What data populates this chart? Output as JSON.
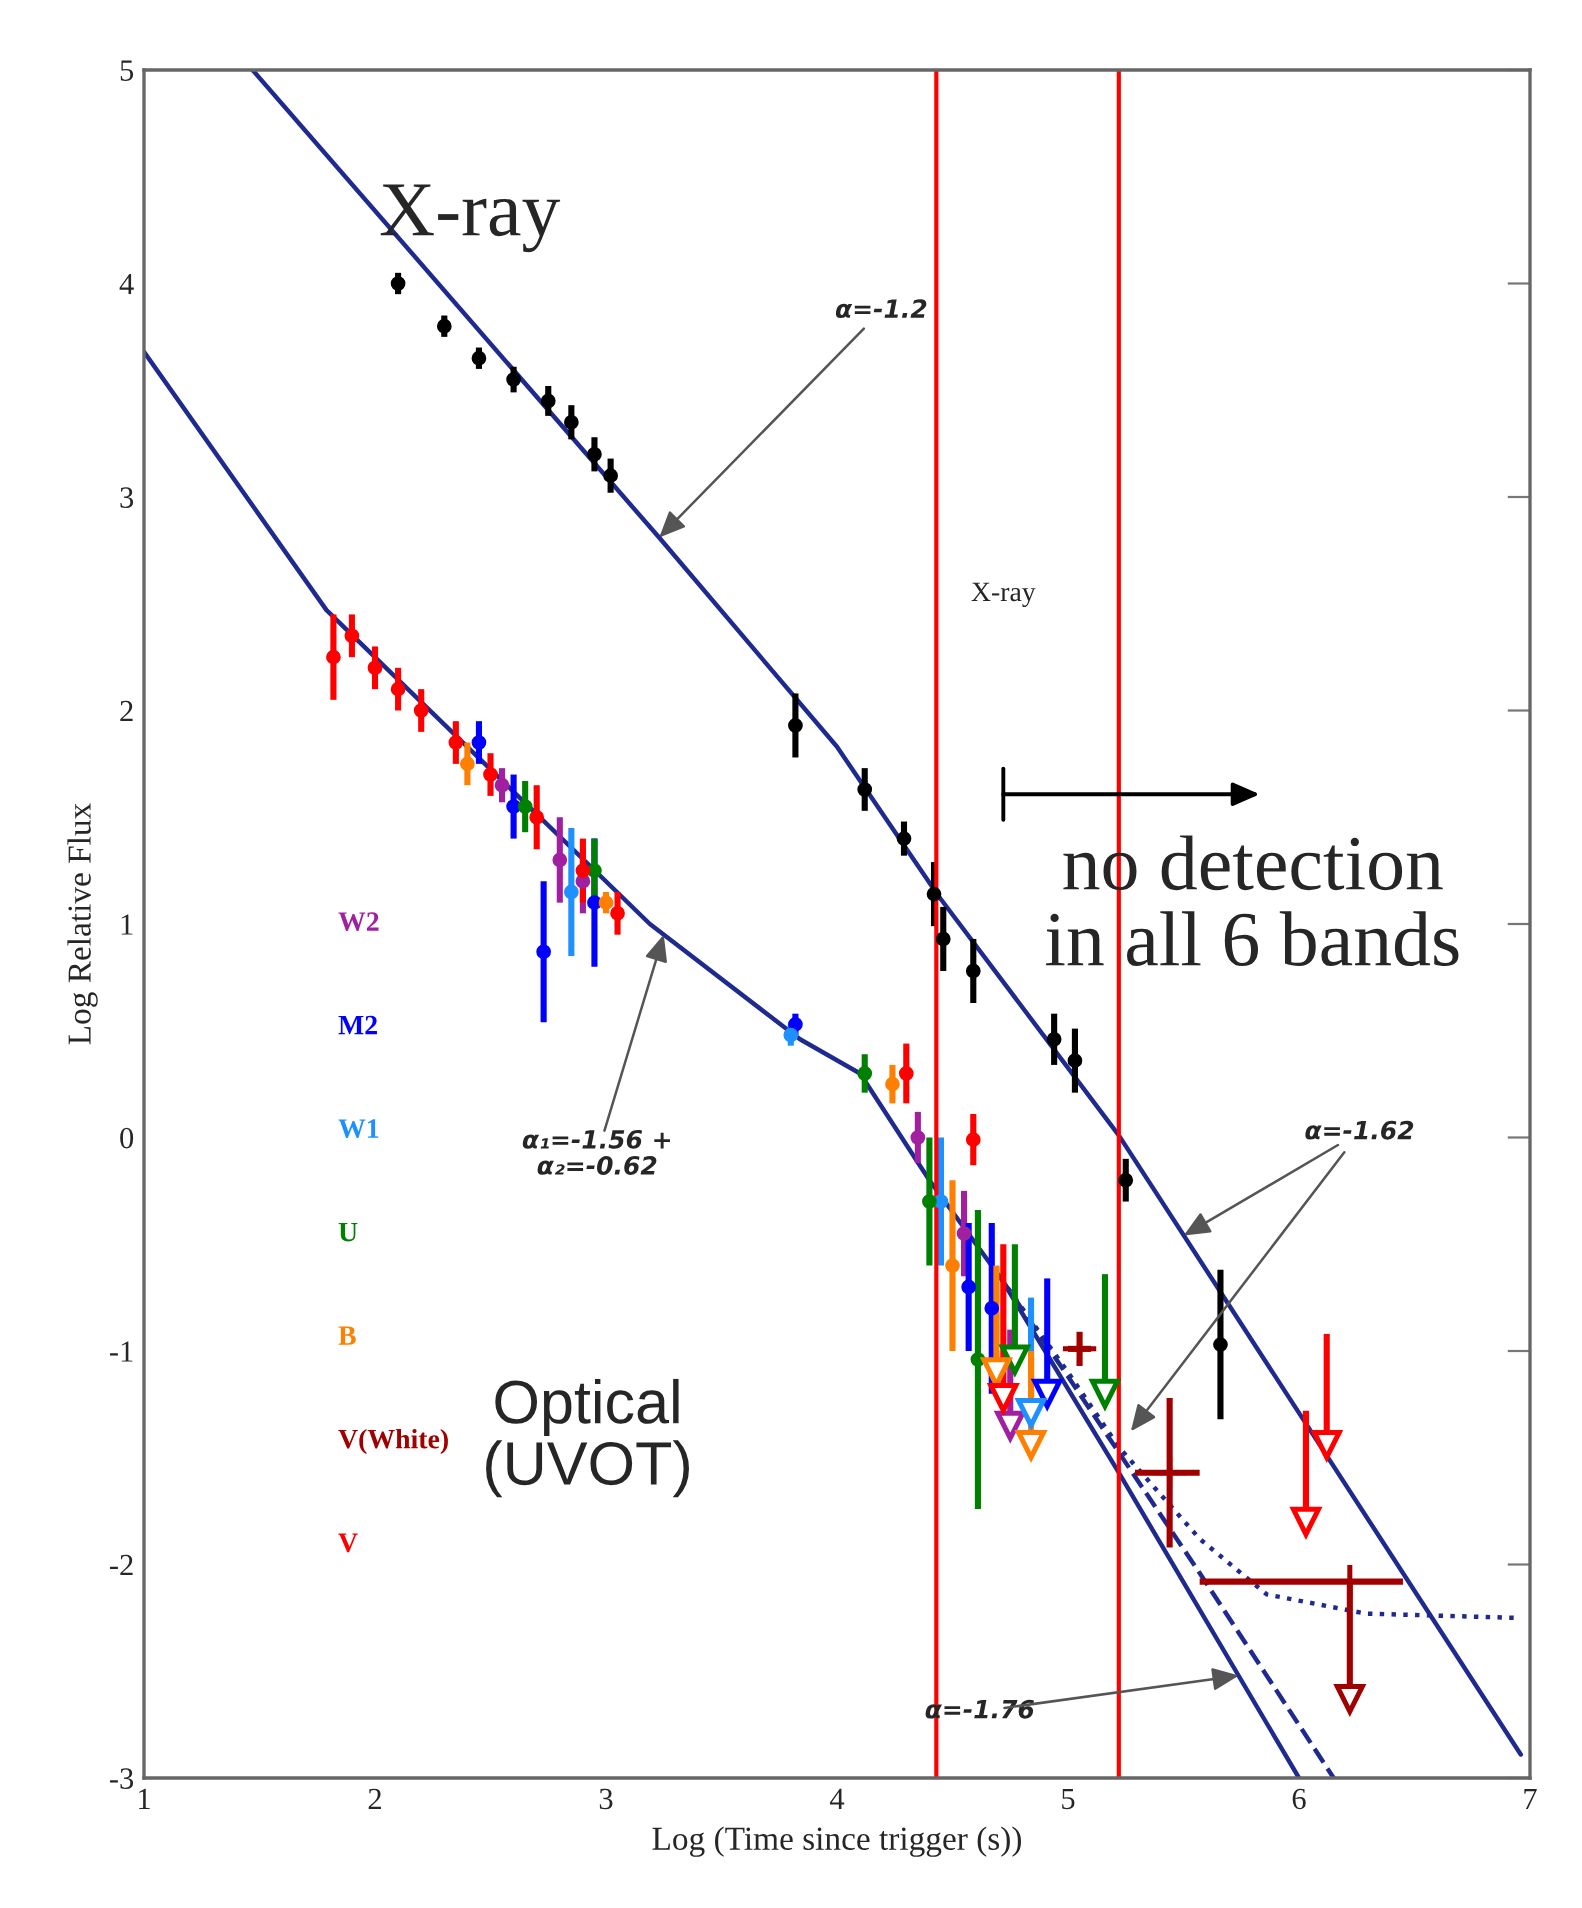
{
  "chart_data": {
    "type": "scatter",
    "xlabel": "Log (Time since trigger (s))",
    "ylabel": "Log Relative Flux",
    "xlim": [
      1,
      7
    ],
    "ylim": [
      -3,
      5
    ],
    "xticks": [
      1,
      2,
      3,
      4,
      5,
      6,
      7
    ],
    "yticks": [
      -3,
      -2,
      -1,
      0,
      1,
      2,
      3,
      4,
      5
    ],
    "grid": false,
    "ref_lines": [
      {
        "axis": "x",
        "value": 4.43,
        "color": "#ff0000"
      },
      {
        "axis": "x",
        "value": 5.22,
        "color": "#ff0000"
      }
    ],
    "series": [
      {
        "type": "line",
        "color": "#1f2a8f",
        "line_style": "solid",
        "x": [
          1.47,
          3.23,
          4.0,
          4.44,
          5.22,
          6.96
        ],
        "values": [
          5.0,
          2.81,
          1.83,
          1.13,
          0.01,
          -2.89
        ]
      },
      {
        "type": "line",
        "color": "#1f2a8f",
        "line_style": "solid",
        "x": [
          1.0,
          1.79,
          3.19,
          3.84,
          4.1,
          4.4,
          4.71,
          5.22,
          6.0
        ],
        "values": [
          3.68,
          2.47,
          1.0,
          0.46,
          0.3,
          -0.2,
          -0.66,
          -1.57,
          -3.0
        ]
      },
      {
        "type": "line",
        "color": "#1f2a8f",
        "line_style": "dashed",
        "x": [
          4.71,
          5.0,
          5.57,
          6.15
        ],
        "values": [
          -0.66,
          -1.12,
          -2.04,
          -3.0
        ]
      },
      {
        "type": "line",
        "color": "#1f2a8f",
        "line_style": "dotted",
        "x": [
          4.71,
          5.0,
          5.22,
          5.57,
          5.86,
          6.29,
          6.94
        ],
        "values": [
          -0.66,
          -1.1,
          -1.45,
          -1.88,
          -2.14,
          -2.23,
          -2.25
        ]
      },
      {
        "marker": "circle",
        "color": "#000000",
        "x": [
          2.1,
          2.3,
          2.45,
          2.6,
          2.75,
          2.85,
          2.95,
          3.02,
          3.82,
          4.12,
          4.29,
          4.42,
          4.46,
          4.59,
          4.94,
          5.03,
          5.25,
          5.66
        ],
        "values": [
          4.0,
          3.8,
          3.65,
          3.55,
          3.45,
          3.35,
          3.2,
          3.1,
          1.93,
          1.63,
          1.4,
          1.14,
          0.93,
          0.78,
          0.46,
          0.36,
          -0.2,
          -0.97
        ],
        "errors": [
          0.05,
          0.05,
          0.05,
          0.06,
          0.07,
          0.08,
          0.08,
          0.08,
          0.15,
          0.1,
          0.08,
          0.15,
          0.15,
          0.15,
          0.12,
          0.15,
          0.1,
          0.35
        ]
      },
      {
        "marker": "circle",
        "name": "W2",
        "color": "#a020a0",
        "x": [
          2.55,
          2.8,
          2.9,
          4.35,
          4.55
        ],
        "values": [
          1.65,
          1.3,
          1.2,
          0.0,
          -0.45
        ],
        "errors": [
          0.08,
          0.2,
          0.15,
          0.12,
          0.2
        ]
      },
      {
        "marker": "circle",
        "name": "M2",
        "color": "#0000ff",
        "x": [
          2.45,
          2.6,
          2.73,
          2.95,
          3.82,
          4.57,
          4.67
        ],
        "values": [
          1.85,
          1.55,
          0.87,
          1.1,
          0.53,
          -0.7,
          -0.8
        ],
        "errors": [
          0.1,
          0.15,
          0.33,
          0.3,
          0.05,
          0.3,
          0.4
        ]
      },
      {
        "marker": "circle",
        "name": "W1",
        "color": "#1e90ff",
        "x": [
          2.85,
          3.8,
          4.45
        ],
        "values": [
          1.15,
          0.48,
          -0.3
        ],
        "errors": [
          0.3,
          0.05,
          0.3
        ]
      },
      {
        "marker": "circle",
        "name": "U",
        "color": "#008000",
        "x": [
          2.65,
          2.95,
          4.12,
          4.4,
          4.61
        ],
        "values": [
          1.55,
          1.25,
          0.3,
          -0.3,
          -1.04
        ],
        "errors": [
          0.12,
          0.15,
          0.09,
          0.3,
          0.7
        ]
      },
      {
        "marker": "circle",
        "name": "B",
        "color": "#ff8000",
        "x": [
          2.4,
          3.0,
          4.24,
          4.5
        ],
        "values": [
          1.75,
          1.1,
          0.25,
          -0.6
        ],
        "errors": [
          0.1,
          0.05,
          0.09,
          0.4
        ]
      },
      {
        "marker": "cross",
        "name": "V(White)",
        "color": "#a00000",
        "x": [
          5.05,
          5.44,
          6.22
        ],
        "values": [
          -0.99,
          -1.57,
          -2.08
        ],
        "errors": [
          0.08,
          0.35,
          null
        ],
        "xerrors": [
          0.05,
          [
            5.29,
            5.57
          ],
          [
            5.57,
            6.45
          ]
        ]
      },
      {
        "marker": "circle",
        "name": "V",
        "color": "#ff0000",
        "x": [
          1.82,
          1.9,
          2.0,
          2.1,
          2.2,
          2.35,
          2.5,
          2.7,
          2.9,
          3.05,
          4.3,
          4.59
        ],
        "values": [
          2.25,
          2.35,
          2.2,
          2.1,
          2.0,
          1.85,
          1.7,
          1.5,
          1.25,
          1.05,
          0.3,
          -0.01
        ],
        "errors": [
          0.2,
          0.1,
          0.1,
          0.1,
          0.1,
          0.1,
          0.1,
          0.15,
          0.15,
          0.1,
          0.14,
          0.12
        ]
      },
      {
        "marker": "triangle",
        "color": "#a020a0",
        "x": [
          4.75
        ],
        "values": [
          -1.35
        ],
        "errors": [
          [
            -1.35,
            -0.9
          ]
        ]
      },
      {
        "marker": "triangle",
        "color": "#0000ff",
        "x": [
          4.91
        ],
        "values": [
          -1.2
        ],
        "errors": [
          [
            -1.2,
            -0.66
          ]
        ]
      },
      {
        "marker": "triangle",
        "color": "#1e90ff",
        "x": [
          4.84
        ],
        "values": [
          -1.29
        ],
        "errors": [
          [
            -1.29,
            -0.75
          ]
        ]
      },
      {
        "marker": "triangle",
        "color": "#008000",
        "x": [
          4.77,
          5.16
        ],
        "values": [
          -1.04,
          -1.2
        ],
        "errors": [
          [
            -1.04,
            -0.5
          ],
          [
            -1.2,
            -0.64
          ]
        ]
      },
      {
        "marker": "triangle",
        "color": "#ff8000",
        "x": [
          4.69,
          4.84
        ],
        "values": [
          -1.1,
          -1.44
        ],
        "errors": [
          [
            -1.1,
            -0.6
          ],
          [
            -1.44,
            -1.0
          ]
        ]
      },
      {
        "marker": "triangle",
        "color": "#a00000",
        "x": [
          6.22
        ],
        "values": [
          -2.63
        ],
        "errors": [
          [
            -2.63,
            -2.08
          ]
        ]
      },
      {
        "marker": "triangle",
        "color": "#ff0000",
        "x": [
          4.72,
          6.03,
          6.12
        ],
        "values": [
          -1.22,
          -1.8,
          -1.44
        ],
        "errors": [
          [
            -1.22,
            -0.5
          ],
          [
            -1.8,
            -1.28
          ],
          [
            -1.44,
            -0.92
          ]
        ]
      }
    ],
    "annotations": [
      "X-ray",
      "X-ray",
      "no detection\nin all 6 bands",
      "Optical\n(UVOT)",
      {
        "text": "α=-1.2",
        "x": 3.23,
        "y": 2.81
      },
      {
        "text": "α₁=-1.56 +\nα₂=-0.62",
        "x": 3.25,
        "y": 0.95
      },
      {
        "text": "α=-1.62",
        "x": 5.5,
        "y": -0.46
      },
      {
        "text": "α=-1.76",
        "x": 5.74,
        "y": -2.52
      }
    ]
  }
}
